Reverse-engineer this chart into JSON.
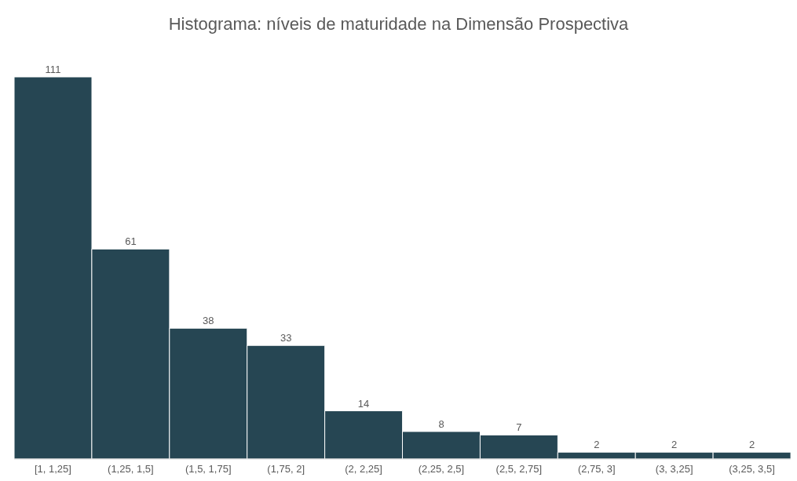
{
  "chart_data": {
    "type": "bar",
    "title": "Histograma: níveis de maturidade na Dimensão Prospectiva",
    "categories": [
      "[1, 1,25]",
      "(1,25, 1,5]",
      "(1,5, 1,75]",
      "(1,75, 2]",
      "(2, 2,25]",
      "(2,25, 2,5]",
      "(2,5, 2,75]",
      "(2,75, 3]",
      "(3, 3,25]",
      "(3,25, 3,5]"
    ],
    "values": [
      111,
      61,
      38,
      33,
      14,
      8,
      7,
      2,
      2,
      2
    ],
    "color": "#264653",
    "data_labels": true
  }
}
